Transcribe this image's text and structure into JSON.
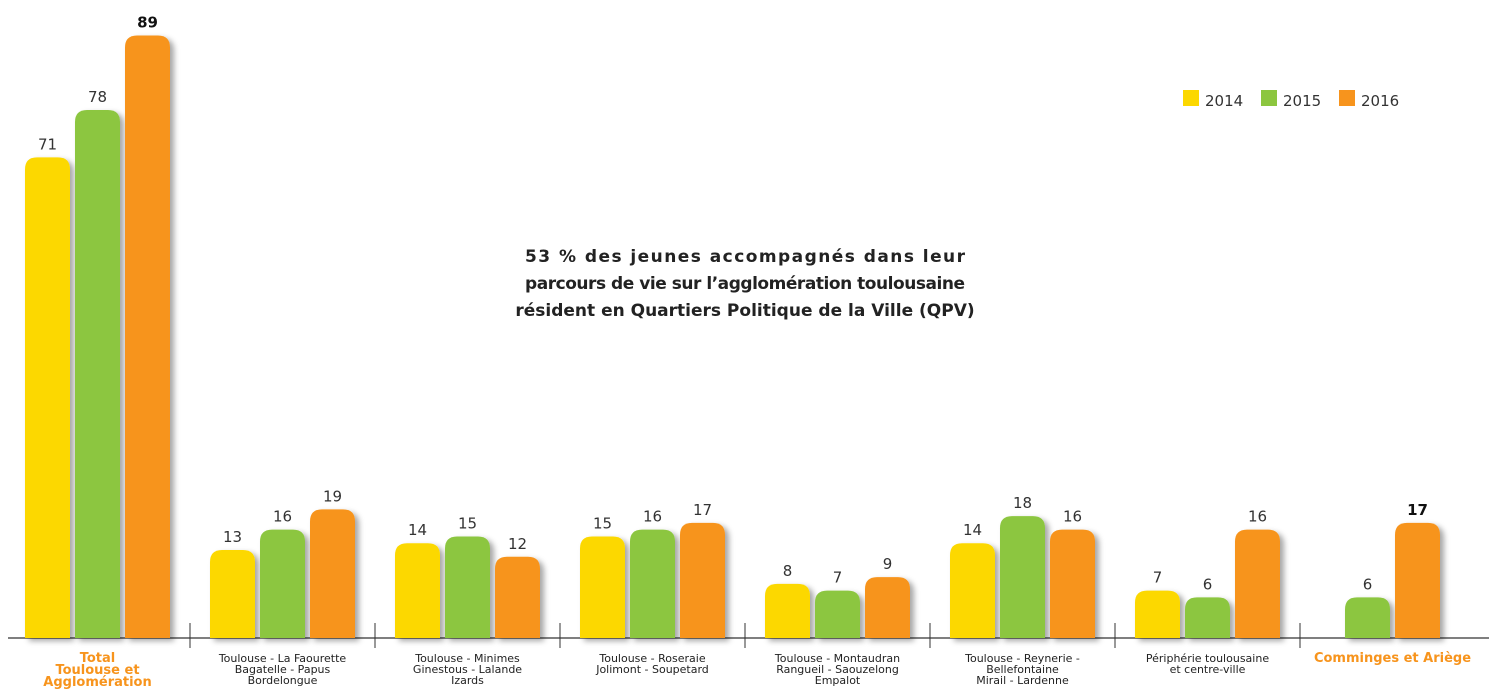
{
  "chart_data": {
    "type": "bar",
    "categories": [
      [
        "Total",
        "Toulouse et",
        "Agglomération"
      ],
      [
        "Toulouse - La Faourette",
        "Bagatelle - Papus",
        "Bordelongue"
      ],
      [
        "Toulouse - Minimes",
        "Ginestous - Lalande",
        "Izards"
      ],
      [
        "Toulouse - Roseraie",
        "Jolimont - Soupetard"
      ],
      [
        "Toulouse - Montaudran",
        "Rangueil - Saouzelong",
        "Empalot"
      ],
      [
        "Toulouse - Reynerie -",
        "Bellefontaine",
        "Mirail - Lardenne"
      ],
      [
        "Périphérie toulousaine",
        "et centre-ville"
      ],
      [
        "Comminges et Ariège"
      ]
    ],
    "series": [
      {
        "name": "2014",
        "color": "#fcd800",
        "values": [
          71,
          13,
          14,
          15,
          8,
          14,
          7,
          null
        ]
      },
      {
        "name": "2015",
        "color": "#8cc63f",
        "values": [
          78,
          16,
          15,
          16,
          7,
          18,
          6,
          6
        ]
      },
      {
        "name": "2016",
        "color": "#f7941d",
        "values": [
          89,
          19,
          12,
          17,
          9,
          16,
          16,
          17
        ]
      }
    ],
    "annotation": [
      "53 % des jeunes accompagnés dans leur",
      "parcours de vie  sur l’agglomération toulousaine",
      "résident en Quartiers Politique de la Ville (QPV)"
    ],
    "highlight": {
      "color": "#f7941d",
      "categories": [
        0,
        7
      ],
      "values": [
        [
          2,
          0
        ],
        [
          2,
          7
        ]
      ]
    },
    "legend": "top-right"
  }
}
